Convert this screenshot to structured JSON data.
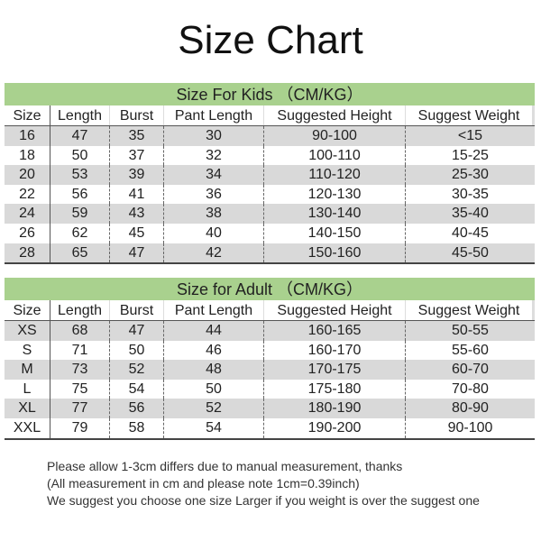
{
  "title": "Size Chart",
  "colors": {
    "band": "#a9d18e",
    "stripe": "#d9d9d9"
  },
  "columns": [
    "Size",
    "Length",
    "Burst",
    "Pant Length",
    "Suggested Height",
    "Suggest Weight"
  ],
  "kids": {
    "heading": "Size For Kids （CM/KG）",
    "rows": [
      [
        "16",
        "47",
        "35",
        "30",
        "90-100",
        "<15"
      ],
      [
        "18",
        "50",
        "37",
        "32",
        "100-110",
        "15-25"
      ],
      [
        "20",
        "53",
        "39",
        "34",
        "110-120",
        "25-30"
      ],
      [
        "22",
        "56",
        "41",
        "36",
        "120-130",
        "30-35"
      ],
      [
        "24",
        "59",
        "43",
        "38",
        "130-140",
        "35-40"
      ],
      [
        "26",
        "62",
        "45",
        "40",
        "140-150",
        "40-45"
      ],
      [
        "28",
        "65",
        "47",
        "42",
        "150-160",
        "45-50"
      ]
    ]
  },
  "adult": {
    "heading": "Size for Adult （CM/KG）",
    "rows": [
      [
        "XS",
        "68",
        "47",
        "44",
        "160-165",
        "50-55"
      ],
      [
        "S",
        "71",
        "50",
        "46",
        "160-170",
        "55-60"
      ],
      [
        "M",
        "73",
        "52",
        "48",
        "170-175",
        "60-70"
      ],
      [
        "L",
        "75",
        "54",
        "50",
        "175-180",
        "70-80"
      ],
      [
        "XL",
        "77",
        "56",
        "52",
        "180-190",
        "80-90"
      ],
      [
        "XXL",
        "79",
        "58",
        "54",
        "190-200",
        "90-100"
      ]
    ]
  },
  "notes": [
    "Please allow 1-3cm differs due to manual measurement, thanks",
    "(All measurement in cm and please note 1cm=0.39inch)",
    "We suggest you choose one size Larger if you weight is over the suggest one"
  ]
}
